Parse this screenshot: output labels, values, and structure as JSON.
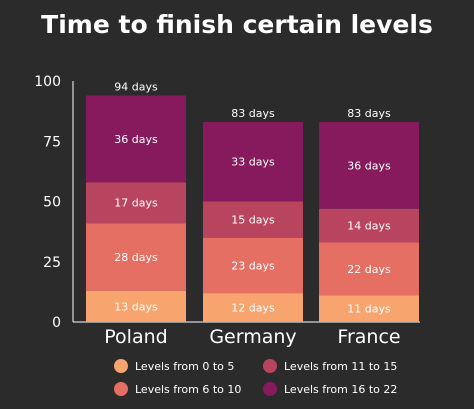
{
  "chart_data": {
    "type": "bar",
    "stacked": true,
    "title": "Time to finish certain levels",
    "categories": [
      "Poland",
      "Germany",
      "France"
    ],
    "ylim": [
      0,
      100
    ],
    "yticks": [
      "0",
      "25",
      "50",
      "75",
      "100"
    ],
    "grid": false,
    "legend_position": "bottom",
    "series": [
      {
        "name": "Levels from 0 to 5",
        "color": "#f7a46f",
        "values": [
          13,
          12,
          11
        ],
        "labels": [
          "13 days",
          "12 days",
          "11 days"
        ]
      },
      {
        "name": "Levels from 6 to 10",
        "color": "#e56f63",
        "values": [
          28,
          23,
          22
        ],
        "labels": [
          "28 days",
          "23 days",
          "22 days"
        ]
      },
      {
        "name": "Levels from 11 to 15",
        "color": "#b9445f",
        "values": [
          17,
          15,
          14
        ],
        "labels": [
          "17 days",
          "15 days",
          "14 days"
        ]
      },
      {
        "name": "Levels from 16 to 22",
        "color": "#861a5c",
        "values": [
          36,
          33,
          36
        ],
        "labels": [
          "36 days",
          "33 days",
          "36 days"
        ]
      }
    ],
    "totals": [
      94,
      83,
      83
    ],
    "total_labels": [
      "94 days",
      "83 days",
      "83 days"
    ]
  }
}
